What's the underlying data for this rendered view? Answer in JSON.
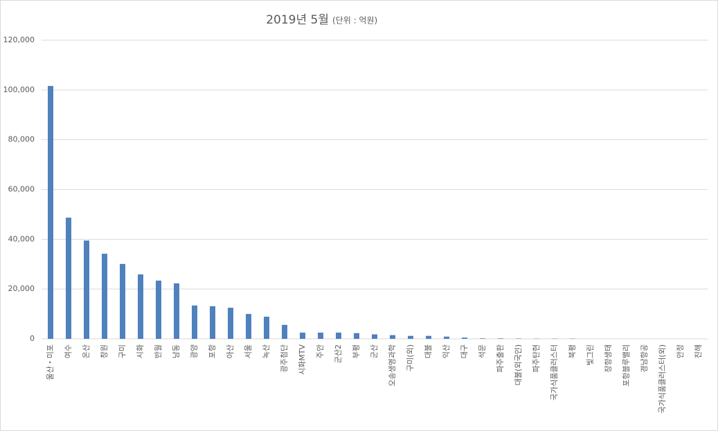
{
  "chart_data": {
    "type": "bar",
    "title": "2019년 5월",
    "subtitle": "(단위 : 억원)",
    "categories": [
      "울산・미포",
      "여수",
      "온산",
      "창원",
      "구미",
      "시화",
      "반월",
      "남동",
      "광양",
      "포항",
      "아산",
      "서울",
      "녹산",
      "광주첨단",
      "시화MTV",
      "주안",
      "군산2",
      "부평",
      "군산",
      "오송생명과학",
      "구미(외)",
      "대불",
      "익산",
      "대구",
      "석문",
      "파주출판",
      "대불(외국인)",
      "파주탄현",
      "국가식품클러스터",
      "북평",
      "빛그린",
      "장항생태",
      "포항블루밸리",
      "경남항공",
      "국가식품클러스터(외)",
      "안정",
      "진해"
    ],
    "values": [
      101600,
      48700,
      39500,
      34200,
      30100,
      25900,
      23400,
      22300,
      13400,
      13100,
      12500,
      10000,
      8900,
      5600,
      2500,
      2500,
      2500,
      2300,
      1800,
      1500,
      1200,
      1200,
      900,
      500,
      200,
      200,
      150,
      100,
      100,
      100,
      0,
      0,
      0,
      0,
      0,
      0,
      0
    ],
    "color": "#4f81bd",
    "ylim": [
      0,
      120000
    ],
    "yticks": [
      {
        "value": 0,
        "label": "0"
      },
      {
        "value": 20000,
        "label": "20,000"
      },
      {
        "value": 40000,
        "label": "40,000"
      },
      {
        "value": 60000,
        "label": "60,000"
      },
      {
        "value": 80000,
        "label": "80,000"
      },
      {
        "value": 100000,
        "label": "100,000"
      },
      {
        "value": 120000,
        "label": "120,000"
      }
    ],
    "grid": true
  }
}
